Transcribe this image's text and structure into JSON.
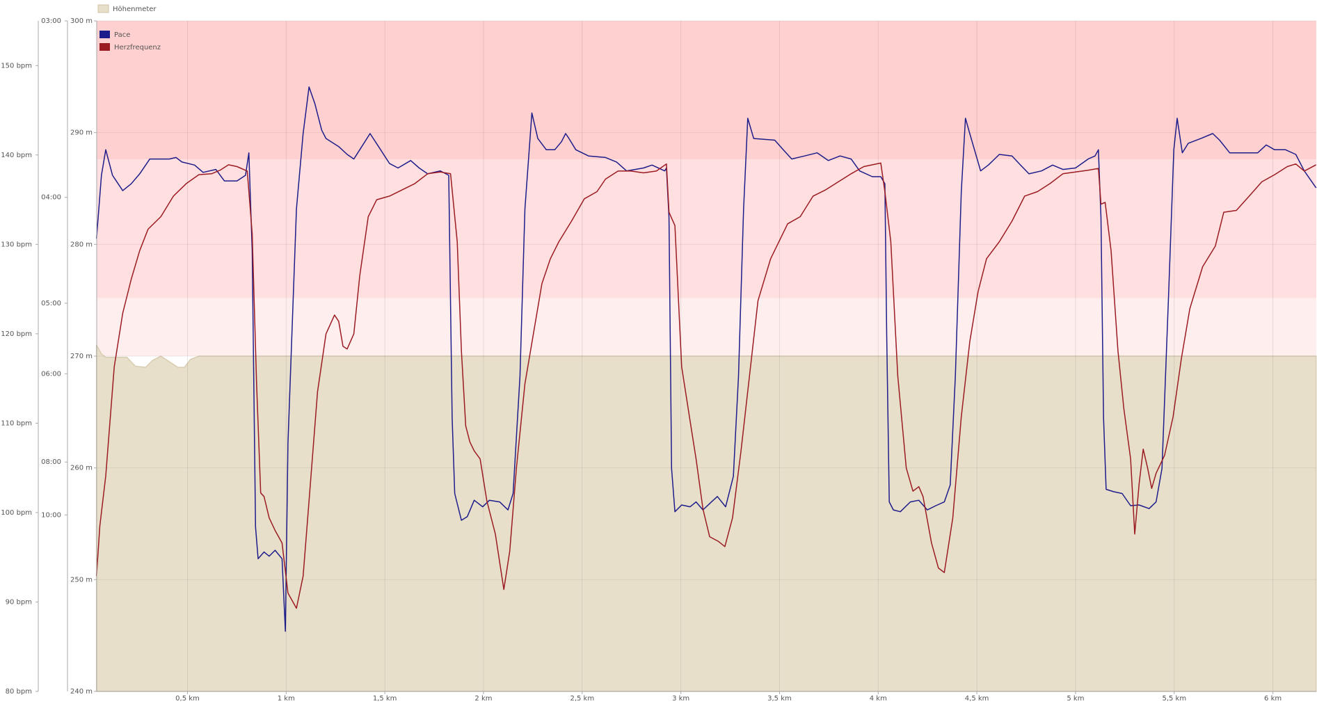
{
  "chart_data": {
    "type": "line",
    "xlim": [
      0.04,
      6.22
    ],
    "xticks": [
      {
        "value": 0.5,
        "label": "0,5 km"
      },
      {
        "value": 1,
        "label": "1 km"
      },
      {
        "value": 1.5,
        "label": "1,5 km"
      },
      {
        "value": 2,
        "label": "2 km"
      },
      {
        "value": 2.5,
        "label": "2,5 km"
      },
      {
        "value": 3,
        "label": "3 km"
      },
      {
        "value": 3.5,
        "label": "3,5 km"
      },
      {
        "value": 4,
        "label": "4 km"
      },
      {
        "value": 4.5,
        "label": "4,5 km"
      },
      {
        "value": 5,
        "label": "5 km"
      },
      {
        "value": 5.5,
        "label": "5,5 km"
      },
      {
        "value": 6,
        "label": "6 km"
      }
    ],
    "ylim": [
      80,
      155
    ],
    "yticks": [
      {
        "value": 80,
        "label": "80 bpm"
      },
      {
        "value": 90,
        "label": "90 bpm"
      },
      {
        "value": 100,
        "label": "100 bpm"
      },
      {
        "value": 110,
        "label": "110 bpm"
      },
      {
        "value": 120,
        "label": "120 bpm"
      },
      {
        "value": 130,
        "label": "130 bpm"
      },
      {
        "value": 140,
        "label": "140 bpm"
      },
      {
        "value": 150,
        "label": "150 bpm"
      }
    ],
    "y2lim": [
      60,
      3
    ],
    "y2scale": "reciprocal",
    "y2ticks": [
      {
        "value": 3,
        "label": "03:00"
      },
      {
        "value": 4,
        "label": "04:00"
      },
      {
        "value": 5,
        "label": "05:00"
      },
      {
        "value": 6,
        "label": "06:00"
      },
      {
        "value": 8,
        "label": "08:00"
      },
      {
        "value": 10,
        "label": "10:00"
      }
    ],
    "y3lim": [
      240,
      300
    ],
    "y3ticks": [
      {
        "value": 240,
        "label": "240 m"
      },
      {
        "value": 250,
        "label": "250 m"
      },
      {
        "value": 260,
        "label": "260 m"
      },
      {
        "value": 270,
        "label": "270 m"
      },
      {
        "value": 280,
        "label": "280 m"
      },
      {
        "value": 290,
        "label": "290 m"
      },
      {
        "value": 300,
        "label": "300 m"
      }
    ],
    "grid": true,
    "bands": [
      {
        "from": 139.5,
        "to": 155,
        "color": "#ffd0d0"
      },
      {
        "from": 124,
        "to": 139.5,
        "color": "#ffdfe0"
      },
      {
        "from": 117.5,
        "to": 124,
        "color": "#ffeeee"
      }
    ],
    "series": [
      {
        "name": "Höhenmeter",
        "type": "area",
        "axis": "y3",
        "color": "#e8dfcb",
        "x": [
          0.039,
          0.064,
          0.086,
          0.193,
          0.236,
          0.288,
          0.322,
          0.365,
          0.408,
          0.451,
          0.485,
          0.515,
          0.558,
          6.219
        ],
        "values": [
          271.0,
          270.2,
          269.9,
          269.9,
          269.1,
          269.0,
          269.6,
          270.0,
          269.5,
          269.0,
          269.0,
          269.7,
          270.0,
          270.0
        ]
      },
      {
        "name": "Pace",
        "type": "line",
        "axis": "y2",
        "color": "#1c1c8a",
        "x": [
          0.039,
          0.064,
          0.086,
          0.12,
          0.172,
          0.215,
          0.258,
          0.309,
          0.408,
          0.442,
          0.472,
          0.536,
          0.579,
          0.644,
          0.687,
          0.751,
          0.794,
          0.811,
          0.828,
          0.845,
          0.858,
          0.888,
          0.914,
          0.944,
          0.979,
          0.996,
          1.009,
          1.052,
          1.086,
          1.116,
          1.146,
          1.18,
          1.202,
          1.266,
          1.309,
          1.343,
          1.373,
          1.425,
          1.468,
          1.524,
          1.567,
          1.631,
          1.674,
          1.717,
          1.781,
          1.824,
          1.841,
          1.854,
          1.888,
          1.918,
          1.953,
          1.996,
          2.03,
          2.082,
          2.124,
          2.15,
          2.185,
          2.21,
          2.245,
          2.275,
          2.318,
          2.361,
          2.395,
          2.416,
          2.433,
          2.468,
          2.532,
          2.618,
          2.674,
          2.725,
          2.811,
          2.854,
          2.918,
          2.927,
          2.94,
          2.953,
          2.97,
          3.004,
          3.047,
          3.077,
          3.112,
          3.155,
          3.185,
          3.227,
          3.266,
          3.292,
          3.318,
          3.339,
          3.369,
          3.476,
          3.519,
          3.562,
          3.627,
          3.691,
          3.747,
          3.807,
          3.863,
          3.906,
          3.97,
          4.013,
          4.034,
          4.043,
          4.056,
          4.077,
          4.112,
          4.163,
          4.206,
          4.249,
          4.292,
          4.335,
          4.365,
          4.391,
          4.421,
          4.442,
          4.464,
          4.519,
          4.558,
          4.614,
          4.678,
          4.721,
          4.764,
          4.828,
          4.884,
          4.936,
          5.0,
          5.064,
          5.099,
          5.116,
          5.129,
          5.142,
          5.155,
          5.193,
          5.236,
          5.279,
          5.322,
          5.373,
          5.408,
          5.438,
          5.472,
          5.498,
          5.515,
          5.541,
          5.571,
          5.635,
          5.695,
          5.73,
          5.781,
          5.923,
          5.966,
          6.009,
          6.064,
          6.116,
          6.159,
          6.219
        ],
        "values": [
          4.34,
          3.84,
          3.67,
          3.84,
          3.95,
          3.9,
          3.83,
          3.73,
          3.73,
          3.72,
          3.75,
          3.77,
          3.82,
          3.8,
          3.88,
          3.88,
          3.84,
          3.69,
          4.45,
          10.6,
          12.61,
          12.12,
          12.42,
          12.0,
          12.61,
          22.2,
          7.47,
          4.09,
          3.57,
          3.31,
          3.4,
          3.55,
          3.6,
          3.65,
          3.7,
          3.73,
          3.67,
          3.57,
          3.65,
          3.76,
          3.79,
          3.74,
          3.79,
          3.83,
          3.81,
          3.84,
          6.86,
          9.08,
          10.26,
          10.08,
          9.35,
          9.63,
          9.35,
          9.42,
          9.77,
          9.08,
          6.04,
          4.09,
          3.45,
          3.6,
          3.67,
          3.67,
          3.62,
          3.57,
          3.6,
          3.67,
          3.71,
          3.72,
          3.75,
          3.81,
          3.79,
          3.77,
          3.81,
          3.79,
          4.16,
          8.2,
          9.85,
          9.55,
          9.63,
          9.42,
          9.77,
          9.42,
          9.2,
          9.63,
          8.46,
          6.04,
          4.09,
          3.48,
          3.6,
          3.61,
          3.67,
          3.73,
          3.71,
          3.69,
          3.74,
          3.71,
          3.73,
          3.81,
          3.85,
          3.85,
          3.9,
          5.4,
          9.42,
          9.77,
          9.85,
          9.42,
          9.35,
          9.77,
          9.58,
          9.42,
          8.76,
          6.04,
          3.96,
          3.48,
          3.57,
          3.81,
          3.77,
          3.7,
          3.71,
          3.77,
          3.83,
          3.81,
          3.77,
          3.8,
          3.79,
          3.73,
          3.71,
          3.67,
          4.16,
          6.86,
          8.92,
          9.01,
          9.08,
          9.58,
          9.55,
          9.71,
          9.42,
          8.2,
          4.88,
          3.67,
          3.48,
          3.69,
          3.63,
          3.6,
          3.57,
          3.61,
          3.69,
          3.69,
          3.64,
          3.67,
          3.67,
          3.7,
          3.81,
          3.93
        ]
      },
      {
        "name": "Herzfrequenz",
        "type": "line",
        "axis": "y",
        "color": "#9b1b22",
        "x": [
          0.039,
          0.056,
          0.086,
          0.129,
          0.172,
          0.215,
          0.258,
          0.3,
          0.365,
          0.429,
          0.494,
          0.558,
          0.622,
          0.665,
          0.708,
          0.751,
          0.803,
          0.828,
          0.85,
          0.871,
          0.888,
          0.914,
          0.944,
          0.979,
          1.009,
          1.052,
          1.086,
          1.116,
          1.159,
          1.202,
          1.245,
          1.266,
          1.288,
          1.309,
          1.343,
          1.373,
          1.416,
          1.459,
          1.524,
          1.588,
          1.652,
          1.717,
          1.781,
          1.833,
          1.867,
          1.888,
          1.91,
          1.931,
          1.953,
          1.983,
          2.017,
          2.06,
          2.103,
          2.133,
          2.167,
          2.21,
          2.253,
          2.296,
          2.339,
          2.382,
          2.446,
          2.511,
          2.575,
          2.618,
          2.682,
          2.747,
          2.811,
          2.876,
          2.927,
          2.94,
          2.97,
          3.004,
          3.047,
          3.077,
          3.112,
          3.146,
          3.189,
          3.223,
          3.262,
          3.305,
          3.348,
          3.391,
          3.455,
          3.541,
          3.605,
          3.67,
          3.734,
          3.798,
          3.863,
          3.927,
          4.013,
          4.034,
          4.064,
          4.099,
          4.142,
          4.176,
          4.206,
          4.227,
          4.27,
          4.305,
          4.335,
          4.378,
          4.421,
          4.464,
          4.506,
          4.549,
          4.614,
          4.678,
          4.742,
          4.807,
          4.871,
          4.936,
          5.0,
          5.064,
          5.116,
          5.129,
          5.15,
          5.18,
          5.215,
          5.245,
          5.279,
          5.3,
          5.322,
          5.343,
          5.365,
          5.386,
          5.408,
          5.451,
          5.494,
          5.536,
          5.579,
          5.644,
          5.708,
          5.751,
          5.815,
          5.88,
          5.944,
          6.009,
          6.073,
          6.116,
          6.159,
          6.219
        ],
        "values": [
          92.9,
          98.5,
          104.1,
          116.3,
          122.3,
          126.1,
          129.3,
          131.7,
          133.1,
          135.4,
          136.8,
          137.8,
          137.9,
          138.3,
          138.9,
          138.7,
          138.2,
          131.2,
          114.4,
          102.2,
          101.8,
          99.4,
          98.0,
          96.6,
          91.0,
          89.3,
          92.9,
          101.3,
          113.5,
          120.0,
          122.1,
          121.4,
          118.6,
          118.3,
          120.0,
          126.5,
          133.1,
          135.0,
          135.4,
          136.1,
          136.8,
          137.9,
          138.1,
          137.9,
          130.3,
          118.1,
          109.7,
          107.9,
          106.9,
          106.0,
          101.3,
          97.6,
          91.4,
          95.7,
          105.0,
          114.4,
          120.0,
          125.6,
          128.4,
          130.3,
          132.6,
          135.1,
          135.9,
          137.3,
          138.2,
          138.2,
          138.0,
          138.2,
          139.0,
          133.6,
          132.1,
          116.3,
          110.2,
          106.0,
          100.4,
          97.3,
          96.8,
          96.2,
          99.4,
          106.9,
          115.3,
          123.7,
          128.4,
          132.3,
          133.1,
          135.4,
          136.1,
          137.0,
          137.9,
          138.7,
          139.1,
          135.9,
          130.3,
          115.3,
          105.0,
          102.4,
          102.9,
          101.8,
          96.6,
          93.8,
          93.3,
          99.4,
          110.7,
          119.1,
          124.7,
          128.4,
          130.3,
          132.6,
          135.4,
          135.9,
          136.8,
          137.9,
          138.1,
          138.3,
          138.5,
          134.5,
          134.7,
          129.3,
          118.1,
          111.6,
          106.0,
          97.6,
          103.2,
          107.1,
          105.0,
          102.7,
          104.4,
          106.4,
          110.7,
          117.2,
          122.8,
          127.5,
          129.8,
          133.6,
          133.8,
          135.4,
          137.0,
          137.8,
          138.7,
          139.0,
          138.2,
          138.9
        ]
      }
    ]
  }
}
